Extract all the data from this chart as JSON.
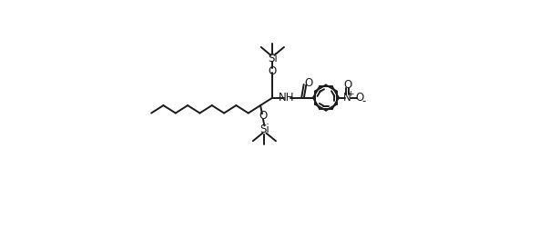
{
  "background": "#ffffff",
  "line_color": "#1a1a1a",
  "line_width": 1.4,
  "font_size": 8.5,
  "fig_width": 6.03,
  "fig_height": 2.61,
  "dpi": 100,
  "xlim": [
    0,
    12.5
  ],
  "ylim": [
    -2.8,
    5.5
  ]
}
